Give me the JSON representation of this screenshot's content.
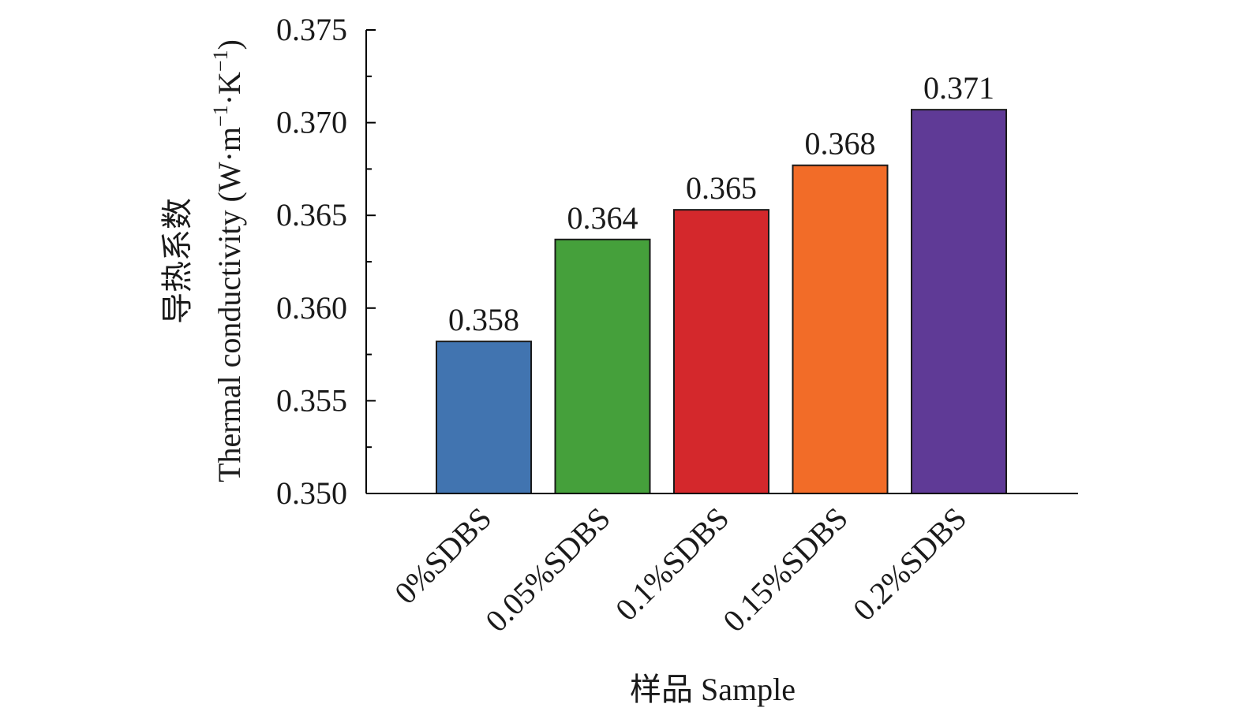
{
  "chart_data": {
    "type": "bar",
    "categories": [
      "0%SDBS",
      "0.05%SDBS",
      "0.1%SDBS",
      "0.15%SDBS",
      "0.2%SDBS"
    ],
    "values": [
      0.3582,
      0.3637,
      0.3653,
      0.3677,
      0.3707
    ],
    "data_labels": [
      "0.358",
      "0.364",
      "0.365",
      "0.368",
      "0.371"
    ],
    "colors": [
      "#4174b0",
      "#45a03b",
      "#d4282c",
      "#f26c28",
      "#5f3a96"
    ],
    "xlabel": "样品 Sample",
    "ylabel": "导热系数",
    "ylabel_line2_main": "Thermal conductivity (W·m",
    "ylabel_line2_sup1": "−1",
    "ylabel_line2_mid": "·K",
    "ylabel_line2_sup2": "−1",
    "ylabel_line2_end": ")",
    "ylim": [
      0.35,
      0.375
    ],
    "yticks": [
      "0.350",
      "0.355",
      "0.360",
      "0.365",
      "0.370",
      "0.375"
    ],
    "ytick_values": [
      0.35,
      0.355,
      0.36,
      0.365,
      0.37,
      0.375
    ],
    "grid": false,
    "legend": "none"
  }
}
